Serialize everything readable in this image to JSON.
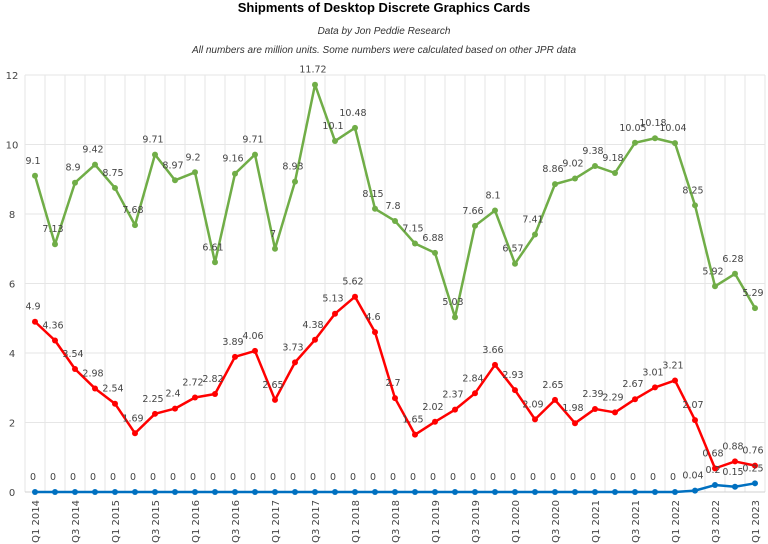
{
  "chart_data": {
    "type": "line",
    "title": "Shipments of Desktop Discrete Graphics Cards",
    "subtitle": "Data by Jon Peddie Research",
    "note": "All numbers are million units. Some numbers were calculated based on other JPR data",
    "xlabel": "",
    "ylabel": "",
    "ylim": [
      0,
      12
    ],
    "yticks": [
      0,
      2,
      4,
      6,
      8,
      10,
      12
    ],
    "grid": true,
    "x": [
      "Q1 2014",
      "Q2 2014",
      "Q3 2014",
      "Q4 2014",
      "Q1 2015",
      "Q2 2015",
      "Q3 2015",
      "Q4 2015",
      "Q1 2016",
      "Q2 2016",
      "Q3 2016",
      "Q4 2016",
      "Q1 2017",
      "Q2 2017",
      "Q3 2017",
      "Q4 2017",
      "Q1 2018",
      "Q2 2018",
      "Q3 2018",
      "Q4 2018",
      "Q1 2019",
      "Q2 2019",
      "Q3 2019",
      "Q4 2019",
      "Q1 2020",
      "Q2 2020",
      "Q3 2020",
      "Q4 2020",
      "Q1 2021",
      "Q2 2021",
      "Q3 2021",
      "Q4 2021",
      "Q1 2022",
      "Q2 2022",
      "Q3 2022",
      "Q4 2022",
      "Q1 2023"
    ],
    "xtick_labels": [
      "Q1 2014",
      "Q3 2014",
      "Q1 2015",
      "Q3 2015",
      "Q1 2016",
      "Q3 2016",
      "Q1 2017",
      "Q3 2017",
      "Q1 2018",
      "Q3 2018",
      "Q1 2019",
      "Q3 2019",
      "Q1 2020",
      "Q3 2020",
      "Q1 2021",
      "Q3 2021",
      "Q1 2022",
      "Q3 2022",
      "Q1 2023"
    ],
    "series": [
      {
        "color": "#70ad47",
        "values": [
          9.1,
          7.13,
          8.9,
          9.42,
          8.75,
          7.68,
          9.71,
          8.97,
          9.2,
          6.61,
          9.16,
          9.71,
          7,
          8.93,
          11.72,
          10.1,
          10.48,
          8.15,
          7.8,
          7.15,
          6.88,
          5.03,
          7.66,
          8.1,
          6.57,
          7.41,
          8.86,
          9.02,
          9.38,
          9.18,
          10.05,
          10.18,
          10.04,
          8.25,
          5.92,
          6.28,
          5.29
        ]
      },
      {
        "color": "#ff0000",
        "values": [
          4.9,
          4.36,
          3.54,
          2.98,
          2.54,
          1.69,
          2.25,
          2.4,
          2.72,
          2.82,
          3.89,
          4.06,
          2.65,
          3.73,
          4.38,
          5.13,
          5.62,
          4.6,
          2.7,
          1.65,
          2.02,
          2.37,
          2.84,
          3.66,
          2.93,
          2.09,
          2.65,
          1.98,
          2.39,
          2.29,
          2.67,
          3.01,
          3.21,
          2.07,
          0.68,
          0.88,
          0.76
        ]
      },
      {
        "color": "#0070c0",
        "values": [
          0,
          0,
          0,
          0,
          0,
          0,
          0,
          0,
          0,
          0,
          0,
          0,
          0,
          0,
          0,
          0,
          0,
          0,
          0,
          0,
          0,
          0,
          0,
          0,
          0,
          0,
          0,
          0,
          0,
          0,
          0,
          0,
          0,
          0.04,
          0.2,
          0.15,
          0.25
        ]
      }
    ]
  }
}
